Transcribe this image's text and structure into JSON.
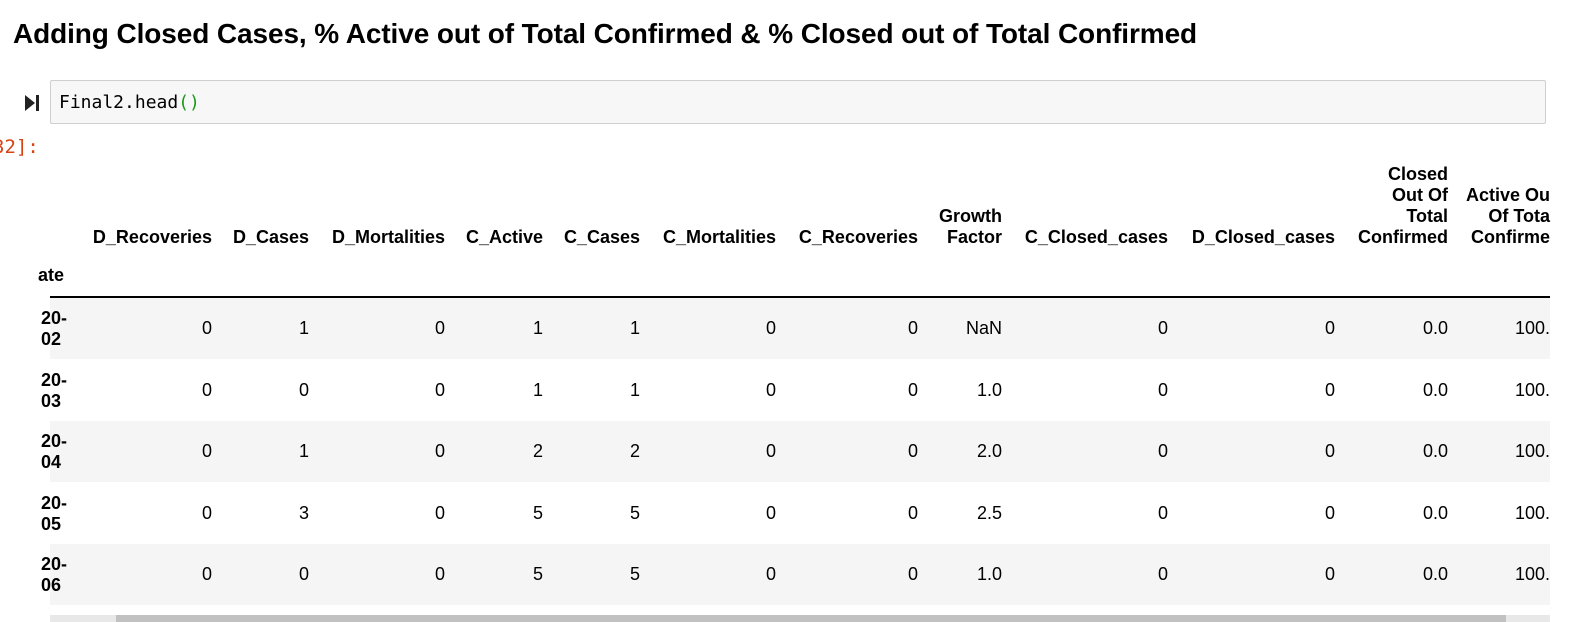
{
  "heading": "Adding Closed Cases, % Active out of Total Confirmed & % Closed out of Total Confirmed",
  "cell": {
    "code_text": "Final2.head",
    "code_parens": "()",
    "out_prompt": "32]:"
  },
  "table": {
    "index_name": "ate",
    "columns": [
      [
        "D_Recoveries"
      ],
      [
        "D_Cases"
      ],
      [
        "D_Mortalities"
      ],
      [
        "C_Active"
      ],
      [
        "C_Cases"
      ],
      [
        "C_Mortalities"
      ],
      [
        "C_Recoveries"
      ],
      [
        "Growth",
        "Factor"
      ],
      [
        "C_Closed_cases"
      ],
      [
        "D_Closed_cases"
      ],
      [
        "Closed",
        "Out Of",
        "Total",
        "Confirmed"
      ],
      [
        "Active Ou",
        "Of Tota",
        "Confirme"
      ]
    ],
    "rows": [
      {
        "index": [
          "20-",
          "02"
        ],
        "values": [
          "0",
          "1",
          "0",
          "1",
          "1",
          "0",
          "0",
          "NaN",
          "0",
          "0",
          "0.0",
          "100."
        ]
      },
      {
        "index": [
          "20-",
          "03"
        ],
        "values": [
          "0",
          "0",
          "0",
          "1",
          "1",
          "0",
          "0",
          "1.0",
          "0",
          "0",
          "0.0",
          "100."
        ]
      },
      {
        "index": [
          "20-",
          "04"
        ],
        "values": [
          "0",
          "1",
          "0",
          "2",
          "2",
          "0",
          "0",
          "2.0",
          "0",
          "0",
          "0.0",
          "100."
        ]
      },
      {
        "index": [
          "20-",
          "05"
        ],
        "values": [
          "0",
          "3",
          "0",
          "5",
          "5",
          "0",
          "0",
          "2.5",
          "0",
          "0",
          "0.0",
          "100."
        ]
      },
      {
        "index": [
          "20-",
          "06"
        ],
        "values": [
          "0",
          "0",
          "0",
          "5",
          "5",
          "0",
          "0",
          "1.0",
          "0",
          "0",
          "0.0",
          "100."
        ]
      }
    ]
  }
}
